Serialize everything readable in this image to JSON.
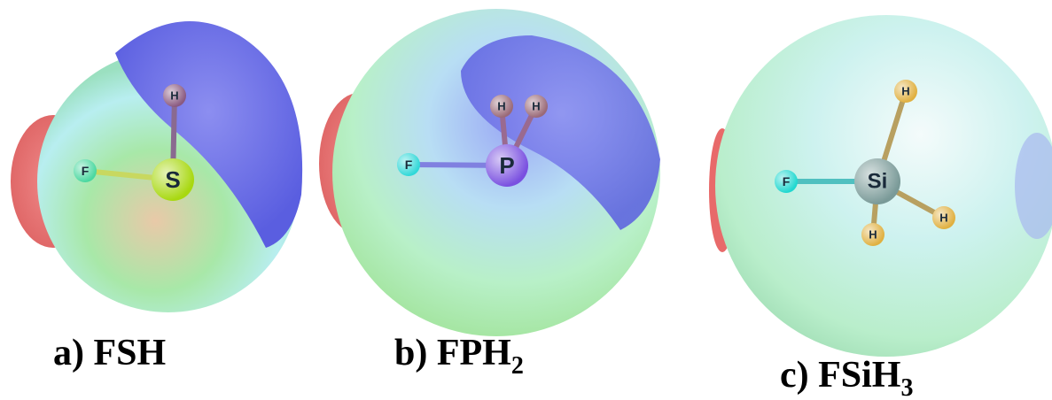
{
  "panels": [
    {
      "caption": {
        "main": "a) FSH"
      },
      "atoms": [
        "F",
        "S",
        "H"
      ]
    },
    {
      "caption": {
        "main": "b) FPH",
        "subscript": "2"
      },
      "atoms": [
        "F",
        "P",
        "H",
        "H"
      ]
    },
    {
      "caption": {
        "main": "c) FSiH",
        "subscript": "3"
      },
      "atoms": [
        "F",
        "Si",
        "H",
        "H",
        "H"
      ]
    }
  ]
}
